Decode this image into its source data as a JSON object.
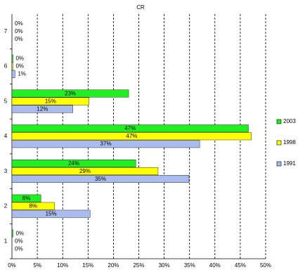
{
  "chart_data": {
    "type": "hbar",
    "title": "CR",
    "categories": [
      "1",
      "2",
      "3",
      "4",
      "5",
      "6",
      "7"
    ],
    "series": [
      {
        "name": "2003",
        "color": "#22ee22",
        "values": [
          0.2,
          5.7,
          24.4,
          46.6,
          23.0,
          0.2,
          0
        ],
        "value_labels": [
          "0%",
          "6%",
          "24%",
          "47%",
          "23%",
          "0%",
          "0%"
        ]
      },
      {
        "name": "1998",
        "color": "#ffff00",
        "values": [
          0,
          8.4,
          28.8,
          47.2,
          15.2,
          0.2,
          0
        ],
        "value_labels": [
          "0%",
          "8%",
          "29%",
          "47%",
          "15%",
          "0%",
          "0%"
        ]
      },
      {
        "name": "1991",
        "color": "#aabbee",
        "values": [
          0,
          15.4,
          34.9,
          37.0,
          12.0,
          0.6,
          0
        ],
        "value_labels": [
          "0%",
          "15%",
          "35%",
          "37%",
          "12%",
          "1%",
          "0%"
        ]
      }
    ],
    "xlim": [
      0,
      50
    ],
    "xticks": [
      {
        "value": 0,
        "label": "0%"
      },
      {
        "value": 5,
        "label": "5%"
      },
      {
        "value": 10,
        "label": "10%"
      },
      {
        "value": 15,
        "label": "15%"
      },
      {
        "value": 20,
        "label": "20%"
      },
      {
        "value": 25,
        "label": "25%"
      },
      {
        "value": 30,
        "label": "30%"
      },
      {
        "value": 35,
        "label": "35%"
      },
      {
        "value": 40,
        "label": "40%"
      },
      {
        "value": 45,
        "label": "45%"
      },
      {
        "value": 50,
        "label": "50%"
      }
    ],
    "grid": true,
    "legend": "right"
  }
}
